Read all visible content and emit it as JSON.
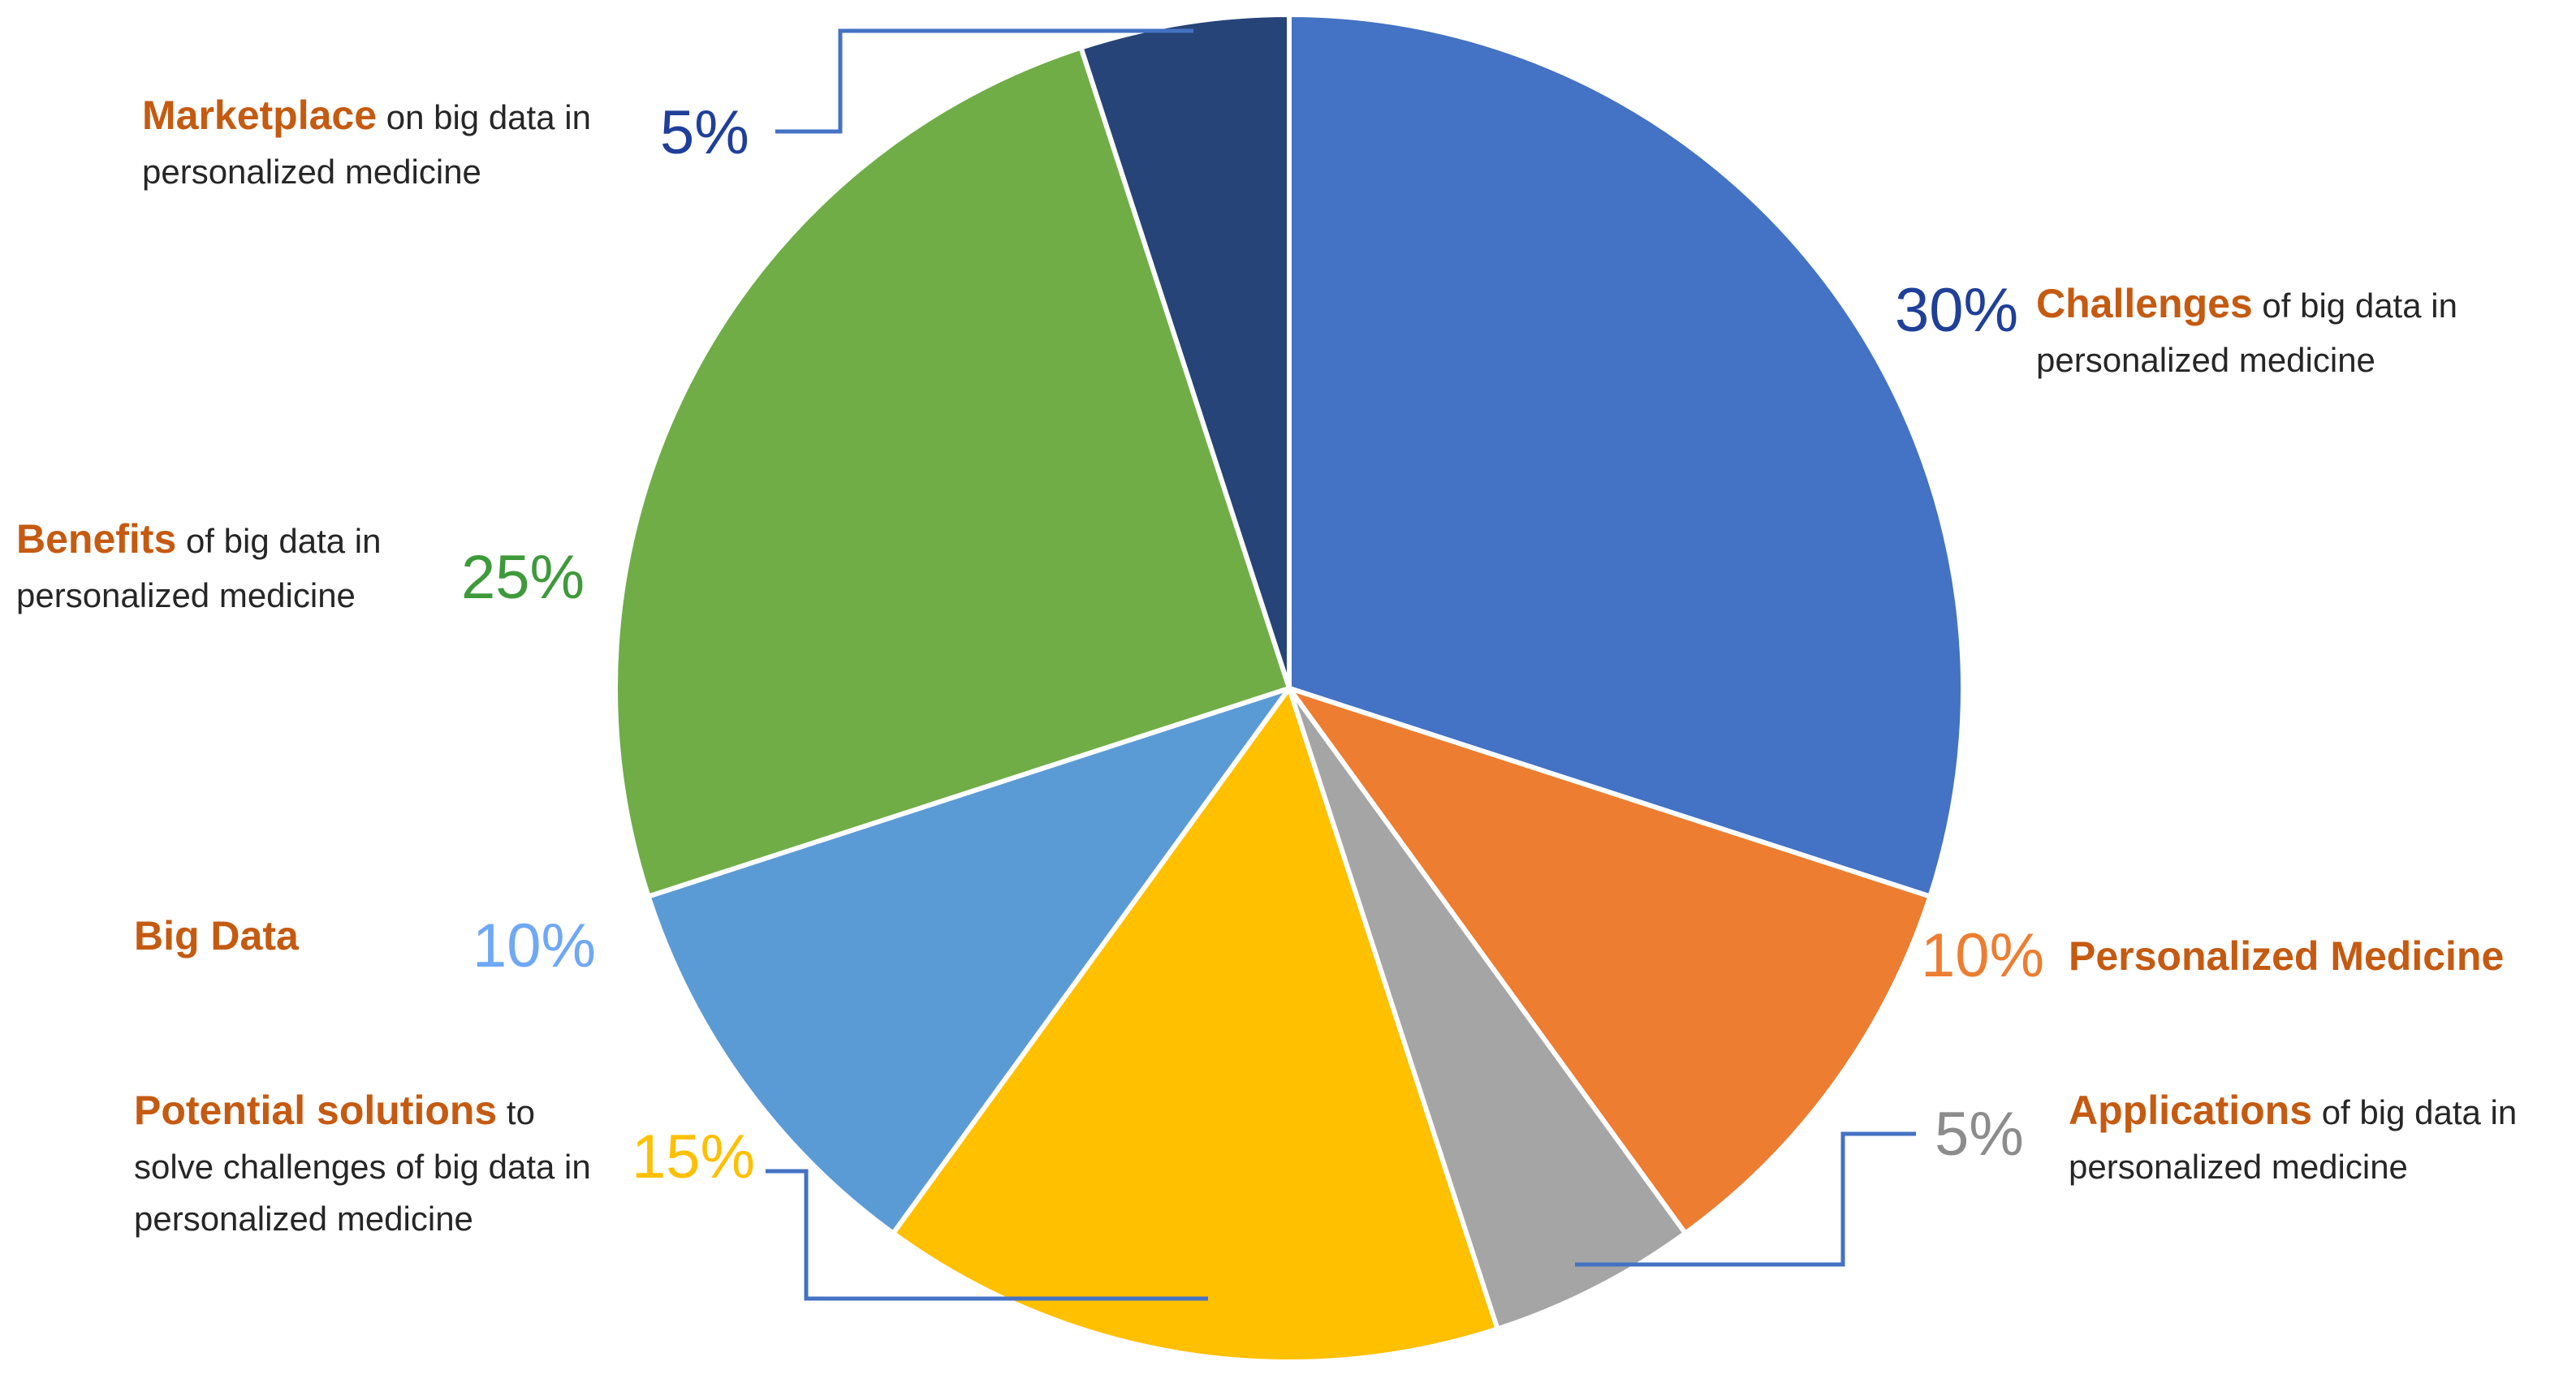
{
  "chart_data": {
    "type": "pie",
    "title": "",
    "start_angle": 0,
    "direction": "clockwise",
    "slices": [
      {
        "name": "Challenges",
        "label_rest": "of big data in personalized medicine",
        "value": 30,
        "value_label": "30%",
        "color": "#4472c4",
        "label_color": "#1f3f99"
      },
      {
        "name": "Personalized Medicine",
        "label_rest": "",
        "value": 10,
        "value_label": "10%",
        "color": "#ed7d31",
        "label_color": "#ed7d31"
      },
      {
        "name": "Applications",
        "label_rest": "of big data in personalized medicine",
        "value": 5,
        "value_label": "5%",
        "color": "#a5a5a5",
        "label_color": "#8c8c8c"
      },
      {
        "name": "Potential solutions",
        "label_rest": "to solve challenges of big data in personalized medicine",
        "value": 15,
        "value_label": "15%",
        "color": "#ffc000",
        "label_color": "#ffc000"
      },
      {
        "name": "Big Data",
        "label_rest": "",
        "value": 10,
        "value_label": "10%",
        "color": "#5b9bd5",
        "label_color": "#6fa8f5"
      },
      {
        "name": "Benefits",
        "label_rest": "of big data in personalized medicine",
        "value": 25,
        "value_label": "25%",
        "color": "#70ad47",
        "label_color": "#3e9a3a"
      },
      {
        "name": "Marketplace",
        "label_rest": "on big data in personalized medicine",
        "value": 5,
        "value_label": "5%",
        "color": "#264478",
        "label_color": "#1f3f99"
      }
    ],
    "leader_color": "#4472c4",
    "category_label_color": "#c55a11"
  }
}
